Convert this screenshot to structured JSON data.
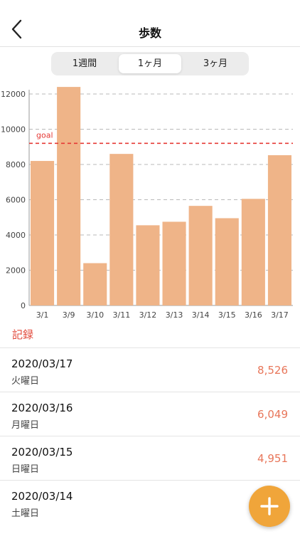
{
  "header": {
    "title": "歩数",
    "back_icon": "chevron-left-icon"
  },
  "tabs": [
    {
      "label": "1週間",
      "active": false
    },
    {
      "label": "1ヶ月",
      "active": true
    },
    {
      "label": "3ヶ月",
      "active": false
    }
  ],
  "chart_data": {
    "type": "bar",
    "categories": [
      "3/1",
      "3/9",
      "3/10",
      "3/11",
      "3/12",
      "3/13",
      "3/14",
      "3/15",
      "3/16",
      "3/17"
    ],
    "values": [
      8200,
      12400,
      2400,
      8600,
      4550,
      4750,
      5650,
      4951,
      6049,
      8526
    ],
    "ylim": [
      0,
      12000
    ],
    "yticks": [
      0,
      2000,
      4000,
      6000,
      8000,
      10000,
      12000
    ],
    "goal": {
      "label": "goal",
      "value": 9200,
      "color": "#e53935"
    },
    "bar_color": "#efb488",
    "grid": true
  },
  "records_label": "記録",
  "records": [
    {
      "date": "2020/03/17",
      "weekday": "火曜日",
      "value": "8,526"
    },
    {
      "date": "2020/03/16",
      "weekday": "月曜日",
      "value": "6,049"
    },
    {
      "date": "2020/03/15",
      "weekday": "日曜日",
      "value": "4,951"
    },
    {
      "date": "2020/03/14",
      "weekday": "土曜日",
      "value": ""
    }
  ],
  "fab": {
    "icon": "plus-icon",
    "color": "#f0a53a"
  }
}
